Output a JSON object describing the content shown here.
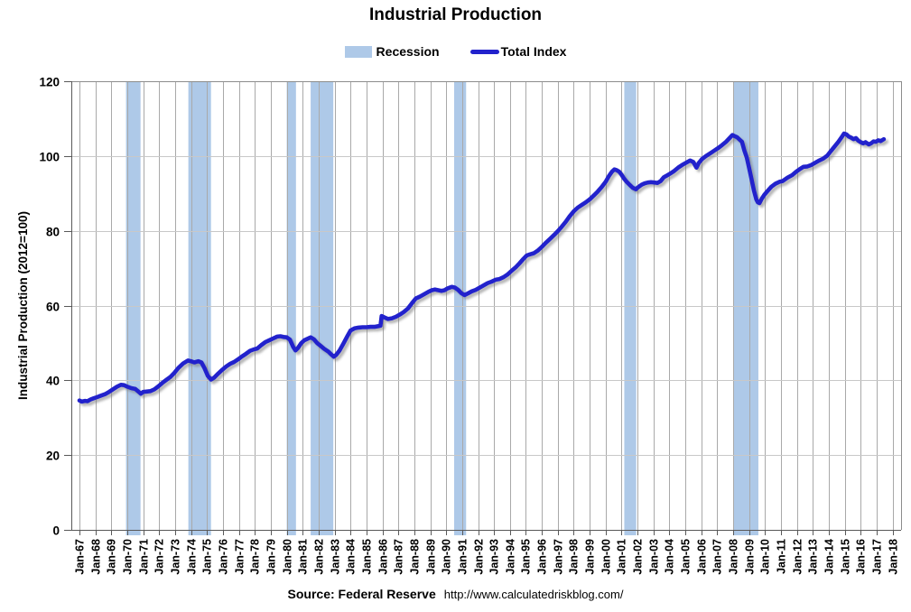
{
  "title": "Industrial Production",
  "legend": {
    "recession_label": "Recession",
    "total_index_label": "Total Index"
  },
  "y_axis": {
    "title": "Industrial Production (2012=100)",
    "ticks": [
      0,
      20,
      40,
      60,
      80,
      100,
      120
    ]
  },
  "x_axis": {
    "labels": [
      "Jan-67",
      "Jan-68",
      "Jan-69",
      "Jan-70",
      "Jan-71",
      "Jan-72",
      "Jan-73",
      "Jan-74",
      "Jan-75",
      "Jan-76",
      "Jan-77",
      "Jan-78",
      "Jan-79",
      "Jan-80",
      "Jan-81",
      "Jan-82",
      "Jan-83",
      "Jan-84",
      "Jan-85",
      "Jan-86",
      "Jan-87",
      "Jan-88",
      "Jan-89",
      "Jan-90",
      "Jan-91",
      "Jan-92",
      "Jan-93",
      "Jan-94",
      "Jan-95",
      "Jan-96",
      "Jan-97",
      "Jan-98",
      "Jan-99",
      "Jan-00",
      "Jan-01",
      "Jan-02",
      "Jan-03",
      "Jan-04",
      "Jan-05",
      "Jan-06",
      "Jan-07",
      "Jan-08",
      "Jan-09",
      "Jan-10",
      "Jan-11",
      "Jan-12",
      "Jan-13",
      "Jan-14",
      "Jan-15",
      "Jan-16",
      "Jan-17",
      "Jan-18"
    ]
  },
  "footer": {
    "source_label": "Source: Federal Reserve",
    "source_url": "http://www.calculatedriskblog.com/"
  },
  "colors": {
    "line": "#2222CC",
    "recession_band": "#AEC9E8",
    "grid_vertical": "#A9A9A9",
    "grid_horizontal": "#C8C8C8",
    "axis": "#595959",
    "border": "#8C8C8C",
    "text": "#000000"
  },
  "chart_data": {
    "type": "line",
    "title": "Industrial Production",
    "xlabel": "",
    "ylabel": "Industrial Production (2012=100)",
    "ylim": [
      0,
      120
    ],
    "x_range_years": [
      1967,
      2018
    ],
    "grid": true,
    "legend_position": "top",
    "recession_bands_years": [
      [
        1969.92,
        1970.83
      ],
      [
        1973.83,
        1975.25
      ],
      [
        1980.0,
        1980.58
      ],
      [
        1981.5,
        1982.92
      ],
      [
        1990.5,
        1991.25
      ],
      [
        2001.17,
        2001.92
      ],
      [
        2008.0,
        2009.58
      ]
    ],
    "series": [
      {
        "name": "Total Index",
        "color": "#2222CC",
        "points": [
          [
            1967.0,
            34.6
          ],
          [
            1967.15,
            34.3
          ],
          [
            1967.35,
            34.5
          ],
          [
            1967.5,
            34.4
          ],
          [
            1967.7,
            34.9
          ],
          [
            1967.9,
            35.2
          ],
          [
            1968.1,
            35.5
          ],
          [
            1968.35,
            35.9
          ],
          [
            1968.6,
            36.3
          ],
          [
            1968.85,
            36.9
          ],
          [
            1969.1,
            37.6
          ],
          [
            1969.35,
            38.3
          ],
          [
            1969.6,
            38.8
          ],
          [
            1969.8,
            38.7
          ],
          [
            1970.0,
            38.3
          ],
          [
            1970.25,
            37.9
          ],
          [
            1970.5,
            37.7
          ],
          [
            1970.7,
            37.0
          ],
          [
            1970.85,
            36.4
          ],
          [
            1971.0,
            36.9
          ],
          [
            1971.2,
            37.0
          ],
          [
            1971.45,
            37.1
          ],
          [
            1971.7,
            37.6
          ],
          [
            1971.95,
            38.4
          ],
          [
            1972.2,
            39.3
          ],
          [
            1972.45,
            40.1
          ],
          [
            1972.7,
            40.9
          ],
          [
            1972.95,
            42.0
          ],
          [
            1973.2,
            43.3
          ],
          [
            1973.5,
            44.5
          ],
          [
            1973.8,
            45.3
          ],
          [
            1974.0,
            45.1
          ],
          [
            1974.2,
            44.8
          ],
          [
            1974.45,
            45.1
          ],
          [
            1974.65,
            44.8
          ],
          [
            1974.85,
            43.2
          ],
          [
            1975.05,
            41.2
          ],
          [
            1975.25,
            40.2
          ],
          [
            1975.45,
            40.7
          ],
          [
            1975.7,
            41.8
          ],
          [
            1975.95,
            42.8
          ],
          [
            1976.2,
            43.7
          ],
          [
            1976.45,
            44.4
          ],
          [
            1976.7,
            44.9
          ],
          [
            1976.95,
            45.6
          ],
          [
            1977.2,
            46.4
          ],
          [
            1977.45,
            47.1
          ],
          [
            1977.7,
            47.9
          ],
          [
            1977.95,
            48.3
          ],
          [
            1978.15,
            48.5
          ],
          [
            1978.4,
            49.4
          ],
          [
            1978.65,
            50.2
          ],
          [
            1978.9,
            50.7
          ],
          [
            1979.15,
            51.2
          ],
          [
            1979.4,
            51.7
          ],
          [
            1979.6,
            51.8
          ],
          [
            1979.8,
            51.6
          ],
          [
            1980.0,
            51.5
          ],
          [
            1980.2,
            50.9
          ],
          [
            1980.4,
            49.0
          ],
          [
            1980.55,
            48.0
          ],
          [
            1980.7,
            48.6
          ],
          [
            1980.9,
            49.9
          ],
          [
            1981.1,
            50.7
          ],
          [
            1981.3,
            51.1
          ],
          [
            1981.5,
            51.5
          ],
          [
            1981.7,
            51.0
          ],
          [
            1981.9,
            50.0
          ],
          [
            1982.1,
            49.3
          ],
          [
            1982.35,
            48.4
          ],
          [
            1982.6,
            47.7
          ],
          [
            1982.8,
            46.9
          ],
          [
            1982.95,
            46.3
          ],
          [
            1983.1,
            46.8
          ],
          [
            1983.3,
            47.9
          ],
          [
            1983.55,
            49.8
          ],
          [
            1983.8,
            51.8
          ],
          [
            1984.0,
            53.3
          ],
          [
            1984.25,
            53.9
          ],
          [
            1984.5,
            54.1
          ],
          [
            1984.75,
            54.2
          ],
          [
            1985.0,
            54.2
          ],
          [
            1985.25,
            54.3
          ],
          [
            1985.5,
            54.3
          ],
          [
            1985.75,
            54.5
          ],
          [
            1985.88,
            54.6
          ],
          [
            1985.95,
            57.2
          ],
          [
            1986.15,
            56.8
          ],
          [
            1986.35,
            56.4
          ],
          [
            1986.6,
            56.6
          ],
          [
            1986.85,
            57.0
          ],
          [
            1987.1,
            57.6
          ],
          [
            1987.35,
            58.3
          ],
          [
            1987.6,
            59.2
          ],
          [
            1987.85,
            60.6
          ],
          [
            1988.1,
            61.9
          ],
          [
            1988.35,
            62.4
          ],
          [
            1988.6,
            63.0
          ],
          [
            1988.85,
            63.6
          ],
          [
            1989.1,
            64.1
          ],
          [
            1989.3,
            64.3
          ],
          [
            1989.5,
            64.1
          ],
          [
            1989.7,
            63.9
          ],
          [
            1989.9,
            64.1
          ],
          [
            1990.1,
            64.6
          ],
          [
            1990.35,
            65.0
          ],
          [
            1990.55,
            64.8
          ],
          [
            1990.75,
            64.2
          ],
          [
            1990.95,
            63.3
          ],
          [
            1991.15,
            62.8
          ],
          [
            1991.35,
            63.2
          ],
          [
            1991.6,
            63.8
          ],
          [
            1991.85,
            64.2
          ],
          [
            1992.1,
            64.8
          ],
          [
            1992.35,
            65.4
          ],
          [
            1992.6,
            66.0
          ],
          [
            1992.85,
            66.4
          ],
          [
            1993.1,
            66.9
          ],
          [
            1993.35,
            67.1
          ],
          [
            1993.6,
            67.6
          ],
          [
            1993.85,
            68.3
          ],
          [
            1994.1,
            69.3
          ],
          [
            1994.35,
            70.2
          ],
          [
            1994.6,
            71.3
          ],
          [
            1994.85,
            72.5
          ],
          [
            1995.05,
            73.4
          ],
          [
            1995.25,
            73.7
          ],
          [
            1995.5,
            74.0
          ],
          [
            1995.75,
            74.7
          ],
          [
            1996.0,
            75.7
          ],
          [
            1996.25,
            76.8
          ],
          [
            1996.5,
            77.8
          ],
          [
            1996.75,
            78.8
          ],
          [
            1997.0,
            79.9
          ],
          [
            1997.25,
            81.1
          ],
          [
            1997.5,
            82.4
          ],
          [
            1997.75,
            83.9
          ],
          [
            1998.0,
            85.2
          ],
          [
            1998.25,
            86.2
          ],
          [
            1998.5,
            86.9
          ],
          [
            1998.75,
            87.6
          ],
          [
            1999.0,
            88.4
          ],
          [
            1999.25,
            89.4
          ],
          [
            1999.5,
            90.5
          ],
          [
            1999.75,
            91.7
          ],
          [
            2000.0,
            93.1
          ],
          [
            2000.2,
            94.6
          ],
          [
            2000.4,
            95.8
          ],
          [
            2000.55,
            96.4
          ],
          [
            2000.7,
            96.2
          ],
          [
            2000.85,
            95.8
          ],
          [
            2001.0,
            95.0
          ],
          [
            2001.15,
            94.0
          ],
          [
            2001.3,
            93.2
          ],
          [
            2001.5,
            92.3
          ],
          [
            2001.7,
            91.5
          ],
          [
            2001.9,
            91.1
          ],
          [
            2002.05,
            91.7
          ],
          [
            2002.25,
            92.3
          ],
          [
            2002.45,
            92.7
          ],
          [
            2002.65,
            92.9
          ],
          [
            2002.85,
            93.0
          ],
          [
            2003.05,
            92.9
          ],
          [
            2003.25,
            92.8
          ],
          [
            2003.45,
            93.3
          ],
          [
            2003.65,
            94.3
          ],
          [
            2003.85,
            94.8
          ],
          [
            2004.05,
            95.3
          ],
          [
            2004.3,
            96.0
          ],
          [
            2004.55,
            96.9
          ],
          [
            2004.8,
            97.6
          ],
          [
            2005.05,
            98.2
          ],
          [
            2005.3,
            98.8
          ],
          [
            2005.5,
            98.4
          ],
          [
            2005.7,
            96.9
          ],
          [
            2005.85,
            98.2
          ],
          [
            2006.05,
            99.2
          ],
          [
            2006.3,
            100.0
          ],
          [
            2006.55,
            100.7
          ],
          [
            2006.8,
            101.4
          ],
          [
            2007.05,
            102.1
          ],
          [
            2007.3,
            102.9
          ],
          [
            2007.55,
            103.8
          ],
          [
            2007.8,
            104.9
          ],
          [
            2007.95,
            105.6
          ],
          [
            2008.1,
            105.3
          ],
          [
            2008.25,
            105.0
          ],
          [
            2008.4,
            104.4
          ],
          [
            2008.55,
            103.8
          ],
          [
            2008.7,
            101.5
          ],
          [
            2008.85,
            99.6
          ],
          [
            2009.0,
            96.8
          ],
          [
            2009.15,
            93.8
          ],
          [
            2009.3,
            90.8
          ],
          [
            2009.45,
            88.4
          ],
          [
            2009.55,
            87.6
          ],
          [
            2009.65,
            87.4
          ],
          [
            2009.8,
            88.6
          ],
          [
            2009.95,
            89.6
          ],
          [
            2010.15,
            90.6
          ],
          [
            2010.4,
            91.8
          ],
          [
            2010.65,
            92.6
          ],
          [
            2010.9,
            93.1
          ],
          [
            2011.1,
            93.3
          ],
          [
            2011.4,
            94.2
          ],
          [
            2011.7,
            94.9
          ],
          [
            2011.95,
            95.8
          ],
          [
            2012.15,
            96.4
          ],
          [
            2012.4,
            97.1
          ],
          [
            2012.65,
            97.2
          ],
          [
            2012.9,
            97.6
          ],
          [
            2013.15,
            98.2
          ],
          [
            2013.4,
            98.8
          ],
          [
            2013.65,
            99.3
          ],
          [
            2013.9,
            100.1
          ],
          [
            2014.1,
            101.2
          ],
          [
            2014.35,
            102.5
          ],
          [
            2014.6,
            103.8
          ],
          [
            2014.8,
            105.0
          ],
          [
            2014.95,
            106.0
          ],
          [
            2015.1,
            105.8
          ],
          [
            2015.25,
            105.2
          ],
          [
            2015.4,
            104.9
          ],
          [
            2015.55,
            104.5
          ],
          [
            2015.7,
            104.8
          ],
          [
            2015.85,
            104.1
          ],
          [
            2016.0,
            103.7
          ],
          [
            2016.15,
            103.4
          ],
          [
            2016.3,
            103.7
          ],
          [
            2016.5,
            103.1
          ],
          [
            2016.65,
            103.4
          ],
          [
            2016.8,
            103.9
          ],
          [
            2016.95,
            103.8
          ],
          [
            2017.1,
            104.2
          ],
          [
            2017.25,
            104.0
          ],
          [
            2017.45,
            104.5
          ]
        ]
      }
    ]
  }
}
